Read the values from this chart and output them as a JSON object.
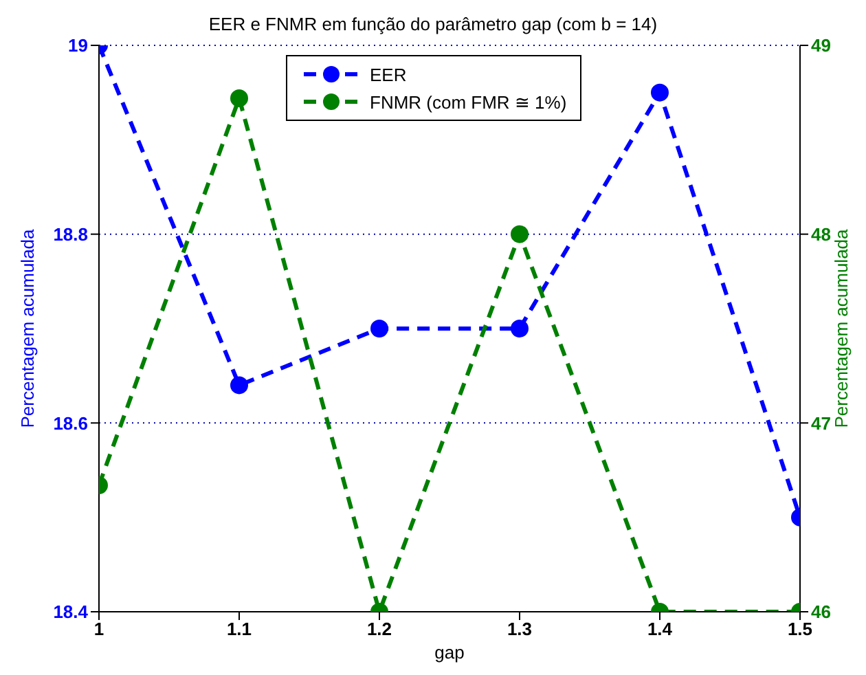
{
  "chart_data": {
    "type": "line",
    "title": "EER e FNMR em função do parâmetro gap (com b = 14)",
    "xlabel": "gap",
    "ylabel": "Percentagem acumulada",
    "y2label": "Percentagem acumulada",
    "x": [
      1,
      1.1,
      1.2,
      1.3,
      1.4,
      1.5
    ],
    "series": [
      {
        "name": "EER",
        "color": "#0000ff",
        "values": [
          19.0,
          18.64,
          18.7,
          18.7,
          18.95,
          18.5
        ]
      },
      {
        "name": "FNMR (com FMR ≅ 1%)",
        "color": "#008000",
        "axis": "y2",
        "values": [
          46.67,
          48.72,
          46,
          48,
          46,
          46
        ]
      }
    ],
    "xlim": [
      1,
      1.5
    ],
    "xticks": [
      1,
      1.1,
      1.2,
      1.3,
      1.4,
      1.5
    ],
    "ylim": [
      18.4,
      19
    ],
    "yticks": [
      18.4,
      18.6,
      18.8,
      {
        "value": 19,
        "label": "19"
      }
    ],
    "y2lim": [
      46,
      49
    ],
    "y2ticks": [
      46,
      47,
      48,
      49
    ],
    "grid": "y",
    "legend": "top",
    "marker": "circle",
    "line_style": "dashed"
  }
}
